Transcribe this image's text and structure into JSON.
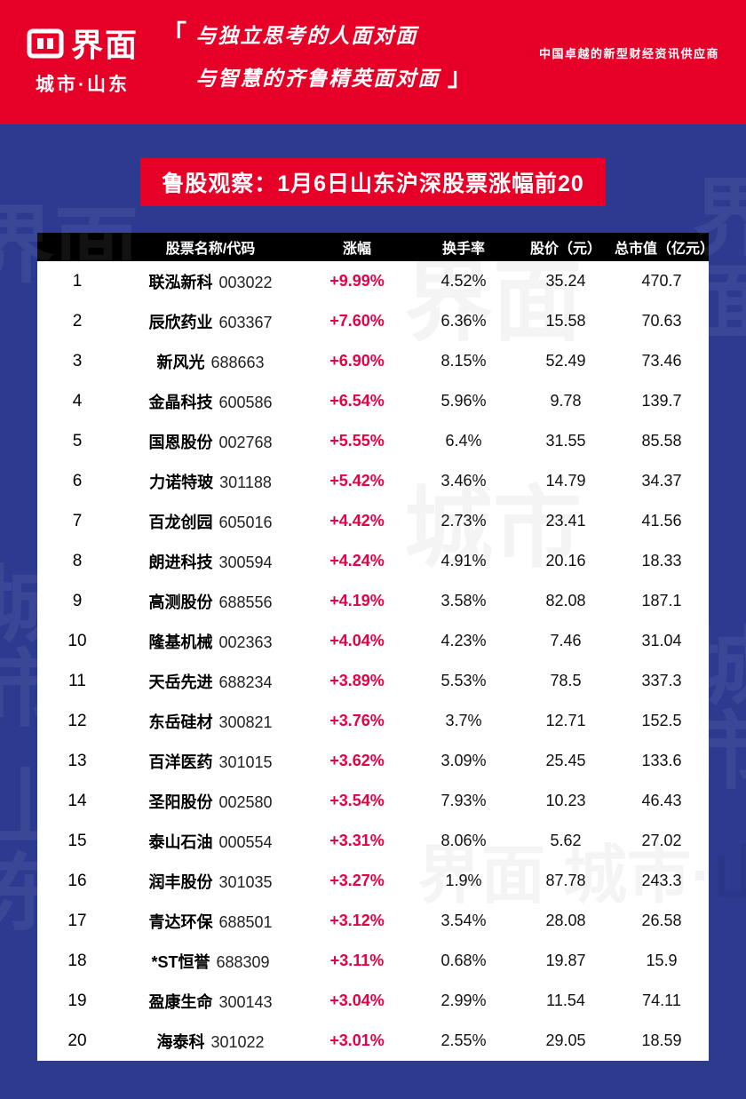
{
  "header": {
    "logo_text": "界面",
    "logo_sub": "城市·山东",
    "quote_open": "「",
    "quote_line1": "与独立思考的人面对面",
    "quote_line2": "与智慧的齐鲁精英面对面",
    "quote_close": "」",
    "tagline": "中国卓越的新型财经资讯供应商"
  },
  "colors": {
    "banner_red": "#e60028",
    "background_blue": "#2c3a90",
    "change_red": "#e60044",
    "header_black": "#000000",
    "table_white": "#ffffff"
  },
  "watermarks": [
    "界面",
    "城市",
    "山东",
    "界面",
    "城市",
    "界面",
    "城市",
    "界面 城市·山东"
  ],
  "chart_data": {
    "type": "table",
    "title": "鲁股观察：1月6日山东沪深股票涨幅前20",
    "columns": [
      "股票名称/代码",
      "涨幅",
      "换手率",
      "股价（元）",
      "总市值（亿元）"
    ],
    "rows": [
      {
        "rank": "1",
        "name": "联泓新科",
        "code": "003022",
        "change": "+9.99%",
        "turnover": "4.52%",
        "price": "35.24",
        "cap": "470.7"
      },
      {
        "rank": "2",
        "name": "辰欣药业",
        "code": "603367",
        "change": "+7.60%",
        "turnover": "6.36%",
        "price": "15.58",
        "cap": "70.63"
      },
      {
        "rank": "3",
        "name": "新风光",
        "code": "688663",
        "change": "+6.90%",
        "turnover": "8.15%",
        "price": "52.49",
        "cap": "73.46"
      },
      {
        "rank": "4",
        "name": "金晶科技",
        "code": "600586",
        "change": "+6.54%",
        "turnover": "5.96%",
        "price": "9.78",
        "cap": "139.7"
      },
      {
        "rank": "5",
        "name": "国恩股份",
        "code": "002768",
        "change": "+5.55%",
        "turnover": "6.4%",
        "price": "31.55",
        "cap": "85.58"
      },
      {
        "rank": "6",
        "name": "力诺特玻",
        "code": "301188",
        "change": "+5.42%",
        "turnover": "3.46%",
        "price": "14.79",
        "cap": "34.37"
      },
      {
        "rank": "7",
        "name": "百龙创园",
        "code": "605016",
        "change": "+4.42%",
        "turnover": "2.73%",
        "price": "23.41",
        "cap": "41.56"
      },
      {
        "rank": "8",
        "name": "朗进科技",
        "code": "300594",
        "change": "+4.24%",
        "turnover": "4.91%",
        "price": "20.16",
        "cap": "18.33"
      },
      {
        "rank": "9",
        "name": "高测股份",
        "code": "688556",
        "change": "+4.19%",
        "turnover": "3.58%",
        "price": "82.08",
        "cap": "187.1"
      },
      {
        "rank": "10",
        "name": "隆基机械",
        "code": "002363",
        "change": "+4.04%",
        "turnover": "4.23%",
        "price": "7.46",
        "cap": "31.04"
      },
      {
        "rank": "11",
        "name": "天岳先进",
        "code": "688234",
        "change": "+3.89%",
        "turnover": "5.53%",
        "price": "78.5",
        "cap": "337.3"
      },
      {
        "rank": "12",
        "name": "东岳硅材",
        "code": "300821",
        "change": "+3.76%",
        "turnover": "3.7%",
        "price": "12.71",
        "cap": "152.5"
      },
      {
        "rank": "13",
        "name": "百洋医药",
        "code": "301015",
        "change": "+3.62%",
        "turnover": "3.09%",
        "price": "25.45",
        "cap": "133.6"
      },
      {
        "rank": "14",
        "name": "圣阳股份",
        "code": "002580",
        "change": "+3.54%",
        "turnover": "7.93%",
        "price": "10.23",
        "cap": "46.43"
      },
      {
        "rank": "15",
        "name": "泰山石油",
        "code": "000554",
        "change": "+3.31%",
        "turnover": "8.06%",
        "price": "5.62",
        "cap": "27.02"
      },
      {
        "rank": "16",
        "name": "润丰股份",
        "code": "301035",
        "change": "+3.27%",
        "turnover": "1.9%",
        "price": "87.78",
        "cap": "243.3"
      },
      {
        "rank": "17",
        "name": "青达环保",
        "code": "688501",
        "change": "+3.12%",
        "turnover": "3.54%",
        "price": "28.08",
        "cap": "26.58"
      },
      {
        "rank": "18",
        "name": "*ST恒誉",
        "code": "688309",
        "change": "+3.11%",
        "turnover": "0.68%",
        "price": "19.87",
        "cap": "15.9"
      },
      {
        "rank": "19",
        "name": "盈康生命",
        "code": "300143",
        "change": "+3.04%",
        "turnover": "2.99%",
        "price": "11.54",
        "cap": "74.11"
      },
      {
        "rank": "20",
        "name": "海泰科",
        "code": "301022",
        "change": "+3.01%",
        "turnover": "2.55%",
        "price": "29.05",
        "cap": "18.59"
      }
    ]
  }
}
